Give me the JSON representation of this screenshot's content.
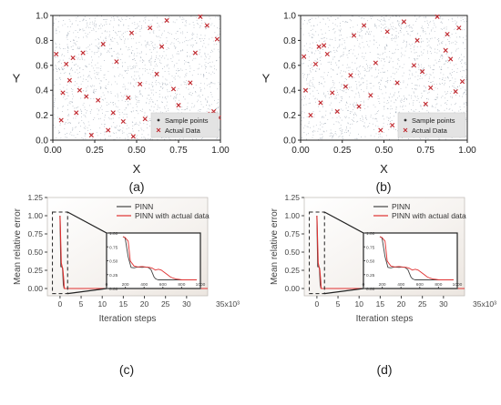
{
  "chart_data": [
    {
      "panel_label": "(a)",
      "type": "scatter",
      "xlabel": "X",
      "ylabel": "Y",
      "xlim": [
        0,
        1
      ],
      "ylim": [
        0,
        1
      ],
      "xticks": [
        "0.00",
        "0.25",
        "0.50",
        "0.75",
        "1.00"
      ],
      "yticks": [
        "0.0",
        "0.2",
        "0.4",
        "0.6",
        "0.8",
        "1.0"
      ],
      "grid": false,
      "legend_position": "bottom-right",
      "series": [
        {
          "name": "Sample points",
          "marker": "dot",
          "color": "#8d9aa8",
          "distribution": "uniform-dense"
        },
        {
          "name": "Actual Data",
          "marker": "x",
          "color": "#c0272d",
          "x": [
            0.02,
            0.05,
            0.06,
            0.08,
            0.1,
            0.12,
            0.14,
            0.16,
            0.18,
            0.2,
            0.23,
            0.27,
            0.3,
            0.33,
            0.36,
            0.38,
            0.42,
            0.45,
            0.47,
            0.48,
            0.52,
            0.55,
            0.58,
            0.62,
            0.65,
            0.68,
            0.72,
            0.75,
            0.78,
            0.82,
            0.85,
            0.88,
            0.92,
            0.94,
            0.96,
            0.98,
            0.99,
            0.9
          ],
          "y": [
            0.69,
            0.16,
            0.38,
            0.61,
            0.48,
            0.66,
            0.22,
            0.4,
            0.7,
            0.35,
            0.04,
            0.32,
            0.77,
            0.08,
            0.22,
            0.63,
            0.15,
            0.34,
            0.86,
            0.03,
            0.45,
            0.17,
            0.9,
            0.53,
            0.75,
            0.96,
            0.41,
            0.28,
            0.06,
            0.46,
            0.7,
            0.99,
            0.92,
            0.21,
            0.23,
            0.81,
            0.18,
            0.11
          ]
        }
      ]
    },
    {
      "panel_label": "(b)",
      "type": "scatter",
      "xlabel": "X",
      "ylabel": "Y",
      "xlim": [
        0,
        1
      ],
      "ylim": [
        0,
        1
      ],
      "xticks": [
        "0.00",
        "0.25",
        "0.50",
        "0.75",
        "1.00"
      ],
      "yticks": [
        "0.0",
        "0.2",
        "0.4",
        "0.6",
        "0.8",
        "1.0"
      ],
      "grid": false,
      "legend_position": "bottom-right",
      "series": [
        {
          "name": "Sample points",
          "marker": "dot",
          "color": "#8d9aa8",
          "distribution": "uniform-dense"
        },
        {
          "name": "Actual Data",
          "marker": "x",
          "color": "#c0272d",
          "x": [
            0.02,
            0.03,
            0.06,
            0.09,
            0.11,
            0.12,
            0.14,
            0.16,
            0.19,
            0.22,
            0.27,
            0.3,
            0.32,
            0.35,
            0.38,
            0.42,
            0.45,
            0.48,
            0.52,
            0.55,
            0.58,
            0.62,
            0.65,
            0.68,
            0.7,
            0.73,
            0.75,
            0.78,
            0.82,
            0.85,
            0.87,
            0.9,
            0.93,
            0.95,
            0.97,
            0.88
          ],
          "y": [
            0.67,
            0.4,
            0.2,
            0.61,
            0.75,
            0.3,
            0.76,
            0.69,
            0.38,
            0.23,
            0.43,
            0.52,
            0.84,
            0.27,
            0.92,
            0.36,
            0.62,
            0.08,
            0.87,
            0.12,
            0.46,
            0.95,
            0.19,
            0.6,
            0.8,
            0.55,
            0.29,
            0.42,
            0.99,
            0.15,
            0.72,
            0.65,
            0.39,
            0.9,
            0.47,
            0.85
          ]
        }
      ]
    },
    {
      "panel_label": "(c)",
      "type": "line",
      "xlabel": "Iteration steps",
      "ylabel": "Mean relative error",
      "x_multiplier_label": "35x10³",
      "xlim": [
        -3,
        35
      ],
      "ylim": [
        -0.1,
        1.25
      ],
      "xticks": [
        "0",
        "5",
        "10",
        "15",
        "20",
        "25",
        "30"
      ],
      "yticks": [
        "0.00",
        "0.25",
        "0.50",
        "0.75",
        "1.00",
        "1.25"
      ],
      "legend_position": "top-right",
      "series": [
        {
          "name": "PINN",
          "color": "#444444",
          "x": [
            0,
            0.2,
            0.4,
            0.6,
            0.8,
            1.0,
            35
          ],
          "y": [
            1.0,
            0.3,
            0.3,
            0.28,
            0.05,
            0.0,
            0.0
          ]
        },
        {
          "name": "PINN with actual data",
          "color": "#e03030",
          "x": [
            0,
            0.3,
            0.5,
            0.7,
            0.9,
            1.0,
            35
          ],
          "y": [
            1.0,
            0.35,
            0.3,
            0.25,
            0.1,
            0.0,
            0.0
          ]
        }
      ],
      "inset": {
        "xlim": [
          0,
          1000
        ],
        "ylim": [
          0,
          1.0
        ],
        "xticks": [
          "0",
          "200",
          "400",
          "600",
          "800",
          "1000"
        ],
        "yticks": [
          "0.00",
          "0.25",
          "0.50",
          "0.75",
          "1.00"
        ],
        "series": [
          {
            "name": "PINN",
            "color": "#444444",
            "x": [
              0,
              30,
              70,
              110,
              150,
              200,
              260,
              300,
              340,
              380,
              400,
              420,
              440,
              460,
              480,
              520,
              600,
              800,
              1000
            ],
            "y": [
              1.0,
              0.97,
              0.55,
              0.31,
              0.3,
              0.32,
              0.31,
              0.32,
              0.31,
              0.26,
              0.18,
              0.1,
              0.06,
              0.04,
              0.03,
              0.03,
              0.03,
              0.03,
              0.03
            ]
          },
          {
            "name": "PINN with actual data",
            "color": "#e03030",
            "x": [
              0,
              30,
              70,
              100,
              150,
              200,
              260,
              300,
              360,
              400,
              440,
              480,
              520,
              560,
              600,
              640,
              680,
              720,
              760,
              800,
              900,
              1000
            ],
            "y": [
              1.0,
              0.98,
              0.9,
              0.45,
              0.34,
              0.32,
              0.33,
              0.32,
              0.31,
              0.29,
              0.25,
              0.27,
              0.25,
              0.2,
              0.15,
              0.1,
              0.07,
              0.05,
              0.04,
              0.03,
              0.03,
              0.03
            ]
          }
        ]
      }
    },
    {
      "panel_label": "(d)",
      "type": "line",
      "xlabel": "Iteration steps",
      "ylabel": "Mean relative error",
      "x_multiplier_label": "35x10³",
      "xlim": [
        -3,
        35
      ],
      "ylim": [
        -0.1,
        1.25
      ],
      "xticks": [
        "0",
        "5",
        "10",
        "15",
        "20",
        "25",
        "30"
      ],
      "yticks": [
        "0.00",
        "0.25",
        "0.50",
        "0.75",
        "1.00",
        "1.25"
      ],
      "legend_position": "top-right",
      "series": [
        {
          "name": "PINN",
          "color": "#444444",
          "x": [
            0,
            0.2,
            0.4,
            0.6,
            0.8,
            1.0,
            35
          ],
          "y": [
            1.0,
            0.3,
            0.3,
            0.28,
            0.05,
            0.0,
            0.0
          ]
        },
        {
          "name": "PINN with actual data",
          "color": "#e03030",
          "x": [
            0,
            0.3,
            0.5,
            0.7,
            0.9,
            1.0,
            35
          ],
          "y": [
            1.0,
            0.35,
            0.3,
            0.25,
            0.1,
            0.0,
            0.0
          ]
        }
      ],
      "inset": {
        "xlim": [
          0,
          1000
        ],
        "ylim": [
          0,
          1.0
        ],
        "xticks": [
          "0",
          "200",
          "400",
          "600",
          "800",
          "1000"
        ],
        "yticks": [
          "0.00",
          "0.25",
          "0.50",
          "0.75",
          "1.00"
        ],
        "series": [
          {
            "name": "PINN",
            "color": "#444444",
            "x": [
              0,
              30,
              70,
              110,
              150,
              200,
              260,
              300,
              340,
              380,
              400,
              420,
              440,
              460,
              480,
              520,
              600,
              800,
              1000
            ],
            "y": [
              1.0,
              0.97,
              0.55,
              0.31,
              0.3,
              0.32,
              0.31,
              0.32,
              0.31,
              0.26,
              0.18,
              0.1,
              0.06,
              0.04,
              0.03,
              0.03,
              0.03,
              0.03,
              0.03
            ]
          },
          {
            "name": "PINN with actual data",
            "color": "#e03030",
            "x": [
              0,
              30,
              70,
              100,
              150,
              200,
              260,
              300,
              360,
              400,
              440,
              480,
              520,
              560,
              600,
              640,
              680,
              720,
              760,
              800,
              900,
              1000
            ],
            "y": [
              1.0,
              0.98,
              0.9,
              0.45,
              0.34,
              0.32,
              0.33,
              0.32,
              0.31,
              0.29,
              0.25,
              0.27,
              0.25,
              0.2,
              0.15,
              0.1,
              0.07,
              0.05,
              0.04,
              0.03,
              0.03,
              0.03
            ]
          }
        ]
      }
    }
  ]
}
